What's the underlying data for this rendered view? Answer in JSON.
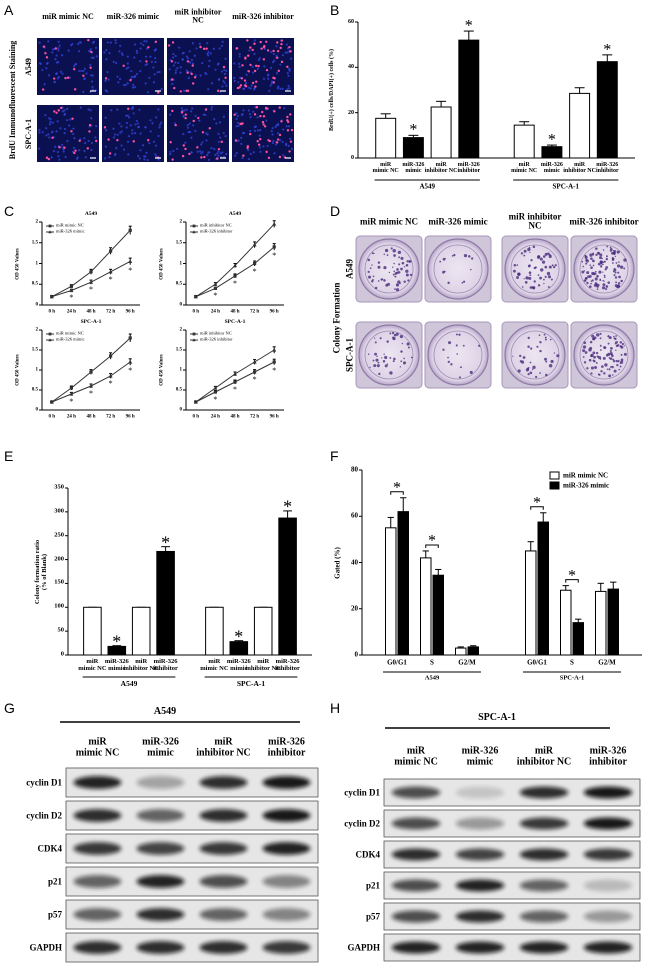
{
  "panel_labels": [
    "A",
    "B",
    "C",
    "D",
    "E",
    "F",
    "G",
    "H"
  ],
  "staining": {
    "side_label": "BrdU Immunofluorescent Staining",
    "columns": [
      "miR mimic NC",
      "miR-326 mimic",
      "miR inhibitor\nNC",
      "miR-326 inhibitor"
    ],
    "rows": [
      "A549",
      "SPC-A-1"
    ]
  },
  "colony": {
    "side_label": "Colony Formation",
    "columns": [
      "miR mimic NC",
      "miR-326 mimic",
      "miR inhibitor\nNC",
      "miR-326 inhibitor"
    ],
    "rows": [
      "A549",
      "SPC-A-1"
    ]
  },
  "blots": [
    {
      "title": "A549",
      "columns": [
        "miR\nmimic NC",
        "miR-326\nmimic",
        "miR\ninhibitor NC",
        "miR-326\ninhibitor"
      ],
      "rows": [
        "cyclin D1",
        "cyclin D2",
        "CDK4",
        "p21",
        "p57",
        "GAPDH"
      ]
    },
    {
      "title": "SPC-A-1",
      "columns": [
        "miR\nmimic NC",
        "miR-326\nmimic",
        "miR\ninhibitor NC",
        "miR-326\ninhibitor"
      ],
      "rows": [
        "cyclin D1",
        "cyclin D2",
        "CDK4",
        "p21",
        "p57",
        "GAPDH"
      ]
    }
  ],
  "chart_data": [
    {
      "type": "grouped-bar",
      "y_label": "BrdU(+) cells/DAPI(+) cells (%)",
      "ylim": [
        0,
        60
      ],
      "yticks": [
        0,
        20,
        40,
        60
      ],
      "groups": [
        {
          "name": "A549",
          "categories": [
            "miR\nmimic NC",
            "miR-326\nmimic",
            "miR\ninhibitor NC",
            "miR-326\ninhibitor"
          ],
          "values": [
            17.5,
            9,
            22.5,
            52
          ],
          "errors": [
            2,
            1,
            2.5,
            4
          ],
          "colors": [
            "#ffffff",
            "#000000",
            "#ffffff",
            "#000000"
          ],
          "annotations": [
            {
              "text": "*",
              "category": "miR-326\nmimic"
            },
            {
              "text": "*",
              "category": "miR-326\ninhibitor"
            }
          ]
        },
        {
          "name": "SPC-A-1",
          "categories": [
            "miR\nmimic NC",
            "miR-326\nmimic",
            "miR\ninhibitor NC",
            "miR-326\ninhibitor"
          ],
          "values": [
            14.5,
            5,
            28.5,
            42.5
          ],
          "errors": [
            1.5,
            0.7,
            2.5,
            3
          ],
          "colors": [
            "#ffffff",
            "#000000",
            "#ffffff",
            "#000000"
          ],
          "annotations": [
            {
              "text": "*",
              "category": "miR-326\nmimic"
            },
            {
              "text": "*",
              "category": "miR-326\ninhibitor"
            }
          ]
        }
      ]
    },
    {
      "type": "line",
      "title": "A549",
      "y_label": "OD 450 Values",
      "categories": [
        "0 h",
        "24 h",
        "48 h",
        "72 h",
        "96 h"
      ],
      "ylim": [
        0,
        2
      ],
      "yticks": [
        0,
        0.5,
        1,
        1.5,
        2
      ],
      "series": [
        {
          "name": "miR mimic NC",
          "color": "#333333",
          "marker": "square",
          "values": [
            0.2,
            0.45,
            0.8,
            1.3,
            1.8
          ],
          "errors": [
            0.02,
            0.04,
            0.06,
            0.08,
            0.1
          ]
        },
        {
          "name": "miR-326 mimic",
          "color": "#333333",
          "marker": "triangle",
          "values": [
            0.2,
            0.35,
            0.55,
            0.8,
            1.05
          ],
          "errors": [
            0.02,
            0.03,
            0.05,
            0.06,
            0.08
          ]
        }
      ],
      "annotations": [
        {
          "text": "*",
          "category": "24 h"
        },
        {
          "text": "*",
          "category": "48 h"
        },
        {
          "text": "*",
          "category": "72 h"
        },
        {
          "text": "*",
          "category": "96 h"
        }
      ]
    },
    {
      "type": "line",
      "title": "A549",
      "y_label": "OD 450 Values",
      "categories": [
        "0 h",
        "24 h",
        "48 h",
        "72 h",
        "96 h"
      ],
      "ylim": [
        0,
        2
      ],
      "yticks": [
        0,
        0.5,
        1,
        1.5,
        2
      ],
      "series": [
        {
          "name": "miR inhibitor NC",
          "color": "#333333",
          "marker": "square",
          "values": [
            0.2,
            0.4,
            0.7,
            1.0,
            1.4
          ],
          "errors": [
            0.02,
            0.03,
            0.05,
            0.06,
            0.08
          ]
        },
        {
          "name": "miR-326 inhibitor",
          "color": "#333333",
          "marker": "triangle",
          "values": [
            0.2,
            0.5,
            0.95,
            1.45,
            1.95
          ],
          "errors": [
            0.02,
            0.04,
            0.05,
            0.07,
            0.08
          ]
        }
      ],
      "annotations": [
        {
          "text": "*",
          "category": "24 h"
        },
        {
          "text": "*",
          "category": "48 h"
        },
        {
          "text": "*",
          "category": "72 h"
        },
        {
          "text": "*",
          "category": "96 h"
        }
      ]
    },
    {
      "type": "line",
      "title": "SPC-A-1",
      "y_label": "OD 450 Values",
      "categories": [
        "0 h",
        "24 h",
        "48 h",
        "72 h",
        "96 h"
      ],
      "ylim": [
        0,
        2
      ],
      "yticks": [
        0,
        0.5,
        1,
        1.5,
        2
      ],
      "series": [
        {
          "name": "miR mimic NC",
          "color": "#333333",
          "marker": "square",
          "values": [
            0.2,
            0.55,
            0.95,
            1.35,
            1.8
          ],
          "errors": [
            0.02,
            0.05,
            0.06,
            0.08,
            0.1
          ]
        },
        {
          "name": "miR-326 mimic",
          "color": "#333333",
          "marker": "triangle",
          "values": [
            0.2,
            0.4,
            0.6,
            0.85,
            1.2
          ],
          "errors": [
            0.02,
            0.04,
            0.05,
            0.06,
            0.08
          ]
        }
      ],
      "annotations": [
        {
          "text": "*",
          "category": "24 h"
        },
        {
          "text": "*",
          "category": "48 h"
        },
        {
          "text": "*",
          "category": "72 h"
        },
        {
          "text": "*",
          "category": "96 h"
        }
      ]
    },
    {
      "type": "line",
      "title": "SPC-A-1",
      "y_label": "OD 450 Values",
      "categories": [
        "0 h",
        "24 h",
        "48 h",
        "72 h",
        "96 h"
      ],
      "ylim": [
        0,
        2
      ],
      "yticks": [
        0,
        0.5,
        1,
        1.5,
        2
      ],
      "series": [
        {
          "name": "miR inhibitor NC",
          "color": "#333333",
          "marker": "square",
          "values": [
            0.2,
            0.45,
            0.7,
            0.95,
            1.2
          ],
          "errors": [
            0.02,
            0.04,
            0.05,
            0.06,
            0.07
          ]
        },
        {
          "name": "miR-326 inhibitor",
          "color": "#333333",
          "marker": "triangle",
          "values": [
            0.2,
            0.55,
            0.9,
            1.2,
            1.5
          ],
          "errors": [
            0.02,
            0.04,
            0.05,
            0.06,
            0.08
          ]
        }
      ],
      "annotations": [
        {
          "text": "*",
          "category": "24 h"
        },
        {
          "text": "*",
          "category": "48 h"
        },
        {
          "text": "*",
          "category": "72 h"
        },
        {
          "text": "*",
          "category": "96 h"
        }
      ]
    },
    {
      "type": "grouped-bar",
      "y_label": "Colony formation ratio\n(% of Blank)",
      "ylim": [
        0,
        350
      ],
      "yticks": [
        0,
        50,
        100,
        150,
        200,
        250,
        300,
        350
      ],
      "groups": [
        {
          "name": "A549",
          "categories": [
            "miR\nmimic NC",
            "miR-326\nmimic",
            "miR\ninhibitor NC",
            "miR-326\ninhibitor"
          ],
          "values": [
            100,
            18,
            100,
            217
          ],
          "errors": [
            0,
            1.5,
            0,
            10
          ],
          "colors": [
            "#ffffff",
            "#000000",
            "#ffffff",
            "#000000"
          ],
          "annotations": [
            {
              "text": "*",
              "category": "miR-326\nmimic"
            },
            {
              "text": "*",
              "category": "miR-326\ninhibitor"
            }
          ]
        },
        {
          "name": "SPC-A-1",
          "categories": [
            "miR\nmimic NC",
            "miR-326\nmimic",
            "miR\ninhibitor NC",
            "miR-326\ninhibitor"
          ],
          "values": [
            100,
            28,
            100,
            287
          ],
          "errors": [
            0,
            2,
            0,
            15
          ],
          "colors": [
            "#ffffff",
            "#000000",
            "#ffffff",
            "#000000"
          ],
          "annotations": [
            {
              "text": "*",
              "category": "miR-326\nmimic"
            },
            {
              "text": "*",
              "category": "miR-326\ninhibitor"
            }
          ]
        }
      ]
    },
    {
      "type": "clustered-bar",
      "y_label": "Gated (%)",
      "ylim": [
        0,
        80
      ],
      "yticks": [
        0,
        20,
        40,
        60,
        80
      ],
      "legend": "top right",
      "series": [
        {
          "name": "miR mimic NC",
          "color": "#ffffff"
        },
        {
          "name": "miR-326 mimic",
          "color": "#000000"
        }
      ],
      "groups": [
        {
          "name": "A549",
          "categories": [
            "G0/G1",
            "S",
            "G2/M"
          ],
          "values": [
            [
              55,
              62
            ],
            [
              42,
              34.5
            ],
            [
              3,
              3.5
            ]
          ],
          "errors": [
            [
              4.5,
              6
            ],
            [
              3,
              2.5
            ],
            [
              0.5,
              0.5
            ]
          ],
          "annotations": [
            {
              "text": "*",
              "category": "G0/G1"
            },
            {
              "text": "*",
              "category": "S"
            }
          ]
        },
        {
          "name": "SPC-A-1",
          "categories": [
            "G0/G1",
            "S",
            "G2/M"
          ],
          "values": [
            [
              45,
              57.5
            ],
            [
              28,
              14
            ],
            [
              27.5,
              28.5
            ]
          ],
          "errors": [
            [
              4,
              4
            ],
            [
              2,
              1.5
            ],
            [
              3.5,
              3
            ]
          ],
          "annotations": [
            {
              "text": "*",
              "category": "G0/G1"
            },
            {
              "text": "*",
              "category": "S"
            }
          ]
        }
      ]
    }
  ]
}
